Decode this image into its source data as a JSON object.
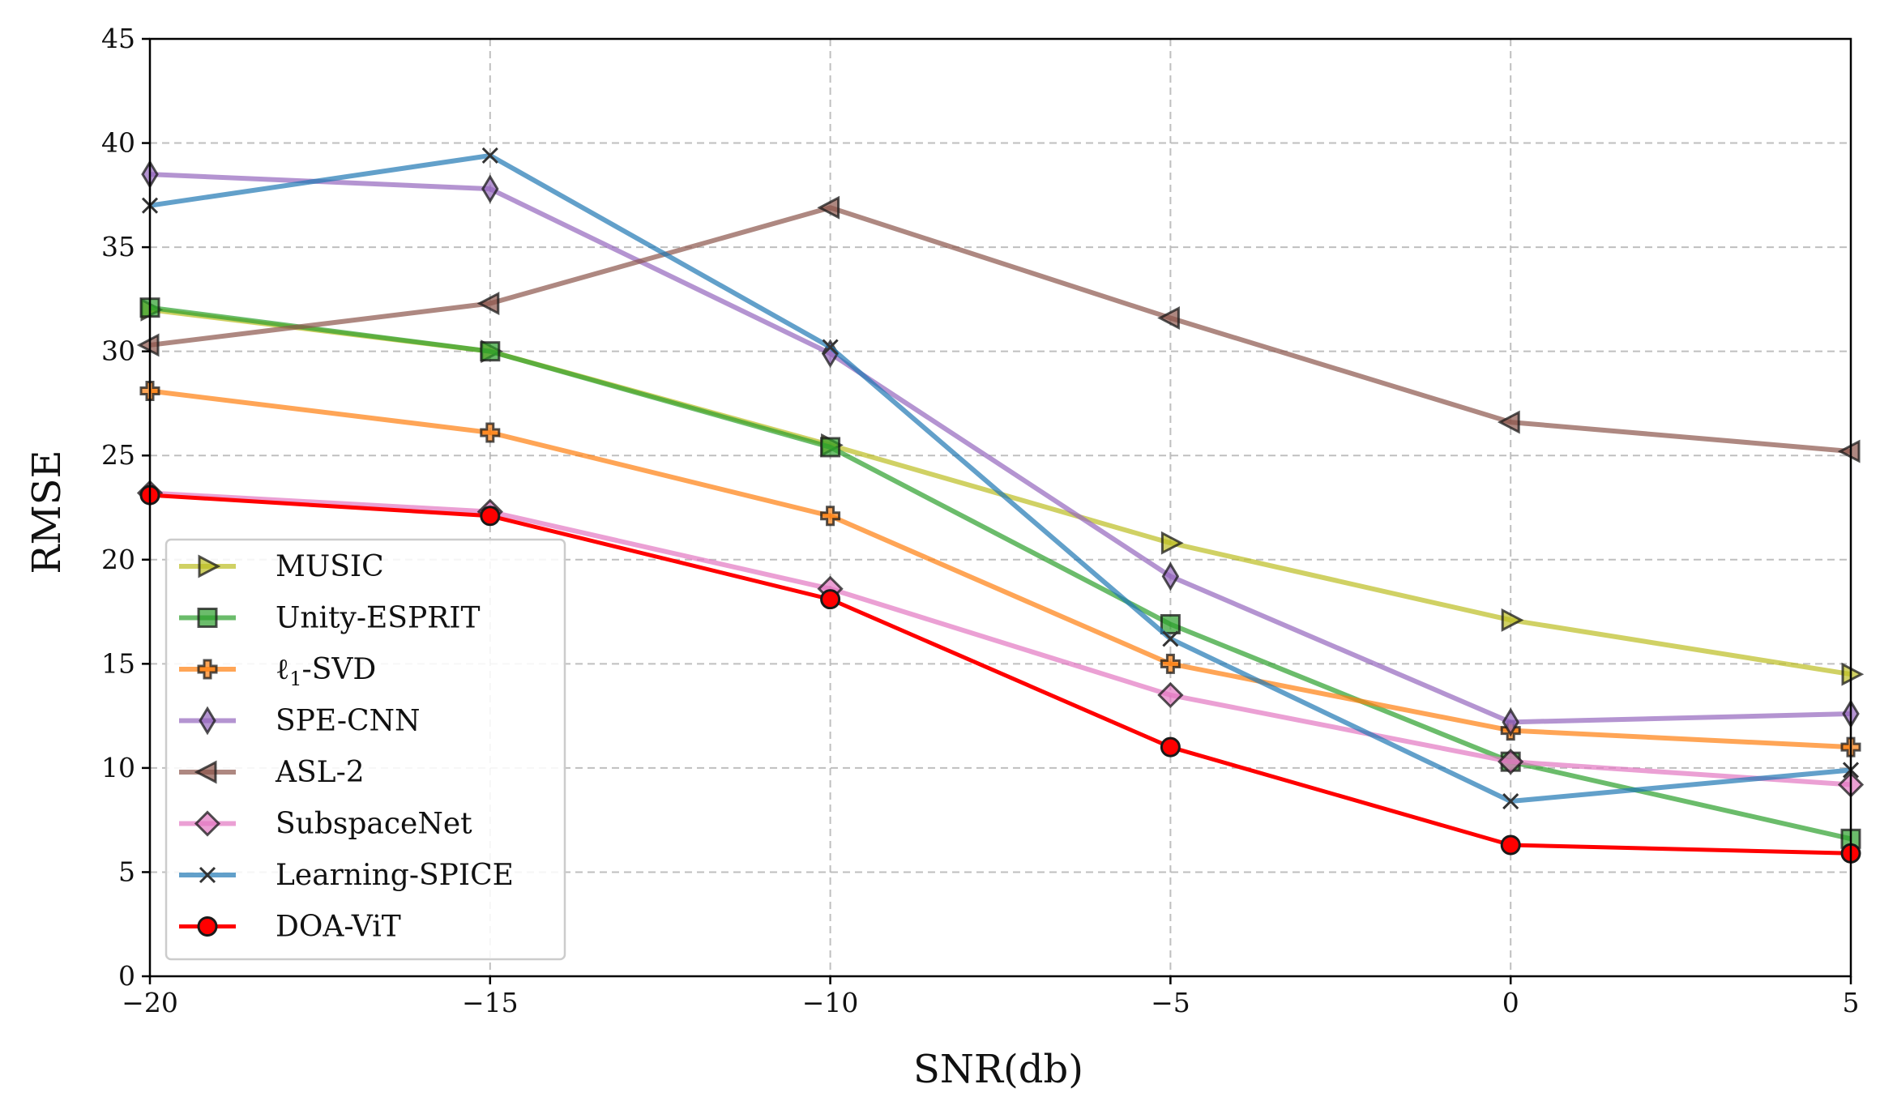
{
  "chart_data": {
    "type": "line",
    "title": "",
    "xlabel": "SNR(db)",
    "ylabel": "RMSE",
    "xlim": [
      -20,
      5
    ],
    "ylim": [
      0,
      45
    ],
    "xticks": [
      -20,
      -15,
      -10,
      -5,
      0,
      5
    ],
    "xtick_labels": [
      "−20",
      "−15",
      "−10",
      "−5",
      "0",
      "5"
    ],
    "yticks": [
      0,
      5,
      10,
      15,
      20,
      25,
      30,
      35,
      40,
      45
    ],
    "ytick_labels": [
      "0",
      "5",
      "10",
      "15",
      "20",
      "25",
      "30",
      "35",
      "40",
      "45"
    ],
    "grid": true,
    "legend_position": "lower-left",
    "x": [
      -20,
      -15,
      -10,
      -5,
      0,
      5
    ],
    "series": [
      {
        "name": "MUSIC",
        "legend_main": "MUSIC",
        "legend_sub": "",
        "legend_tail": "",
        "color": "#bcbd22",
        "marker": "triangle-right",
        "values": [
          32.0,
          30.0,
          25.5,
          20.8,
          17.1,
          14.5
        ]
      },
      {
        "name": "Unity-ESPRIT",
        "legend_main": "Unity-ESPRIT",
        "legend_sub": "",
        "legend_tail": "",
        "color": "#2ca02c",
        "marker": "square",
        "values": [
          32.1,
          30.0,
          25.4,
          16.9,
          10.3,
          6.6
        ]
      },
      {
        "name": "ℓ₁-SVD",
        "legend_main": "ℓ",
        "legend_sub": "1",
        "legend_tail": "-SVD",
        "color": "#ff7f0e",
        "marker": "plus",
        "values": [
          28.1,
          26.1,
          22.1,
          15.0,
          11.8,
          11.0
        ]
      },
      {
        "name": "SPE-CNN",
        "legend_main": "SPE-CNN",
        "legend_sub": "",
        "legend_tail": "",
        "color": "#9467bd",
        "marker": "thin-diamond",
        "values": [
          38.5,
          37.8,
          29.9,
          19.2,
          12.2,
          12.6
        ]
      },
      {
        "name": "ASL-2",
        "legend_main": "ASL-2",
        "legend_sub": "",
        "legend_tail": "",
        "color": "#8c564b",
        "marker": "triangle-left",
        "values": [
          30.3,
          32.3,
          36.9,
          31.6,
          26.6,
          25.2
        ]
      },
      {
        "name": "SubspaceNet",
        "legend_main": "SubspaceNet",
        "legend_sub": "",
        "legend_tail": "",
        "color": "#e377c2",
        "marker": "diamond",
        "values": [
          23.2,
          22.3,
          18.6,
          13.5,
          10.3,
          9.2
        ]
      },
      {
        "name": "Learning-SPICE",
        "legend_main": "Learning-SPICE",
        "legend_sub": "",
        "legend_tail": "",
        "color": "#1f77b4",
        "marker": "x",
        "values": [
          37.0,
          39.4,
          30.2,
          16.2,
          8.4,
          9.9
        ]
      },
      {
        "name": "DOA-ViT",
        "legend_main": "DOA-ViT",
        "legend_sub": "",
        "legend_tail": "",
        "color": "#ff0000",
        "marker": "circle",
        "values": [
          23.1,
          22.1,
          18.1,
          11.0,
          6.3,
          5.9
        ]
      }
    ]
  }
}
